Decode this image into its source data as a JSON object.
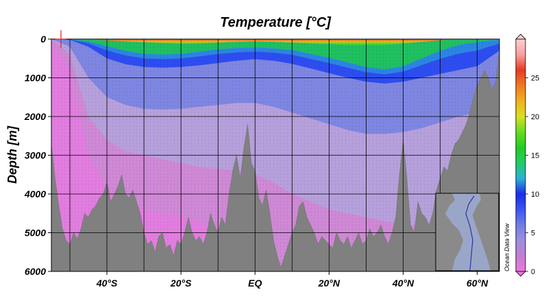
{
  "chart_data": {
    "type": "heatmap",
    "title": "Temperature [°C]",
    "ylabel": "Depth [m]",
    "xlabel": "",
    "x_ticks": [
      {
        "lat": -40,
        "label": "40°S"
      },
      {
        "lat": -20,
        "label": "20°S"
      },
      {
        "lat": 0,
        "label": "EQ"
      },
      {
        "lat": 20,
        "label": "20°N"
      },
      {
        "lat": 40,
        "label": "40°N"
      },
      {
        "lat": 60,
        "label": "60°N"
      }
    ],
    "x_range": [
      -55,
      66
    ],
    "y_ticks": [
      0,
      1000,
      2000,
      3000,
      4000,
      5000,
      6000
    ],
    "y_range": [
      0,
      6000
    ],
    "y_reversed": true,
    "grid": true,
    "colorbar": {
      "min": 0,
      "max": 30,
      "ticks": [
        0,
        5,
        10,
        15,
        20,
        25
      ],
      "colors": [
        "#ee77dd",
        "#c07fd2",
        "#9e8ee0",
        "#6e7fe6",
        "#3b55f0",
        "#1a2be8",
        "#2cb0d8",
        "#22cc66",
        "#22cc22",
        "#66dd22",
        "#d8e022",
        "#f0b020",
        "#f07a20",
        "#e83a24",
        "#f8a0a0",
        "#fdd0d0"
      ]
    },
    "isotherm_depths": {
      "lat": [
        -55,
        -50,
        -45,
        -40,
        -35,
        -30,
        -25,
        -20,
        -15,
        -10,
        -5,
        0,
        5,
        10,
        15,
        20,
        25,
        30,
        35,
        40,
        45,
        50,
        55,
        60,
        63,
        66
      ],
      "t20": [
        0,
        0,
        10,
        30,
        60,
        80,
        100,
        120,
        110,
        90,
        70,
        60,
        70,
        90,
        110,
        130,
        150,
        160,
        150,
        110,
        70,
        30,
        0,
        0,
        0,
        0
      ],
      "t10": [
        0,
        5,
        60,
        180,
        300,
        380,
        400,
        380,
        320,
        260,
        230,
        220,
        240,
        280,
        380,
        480,
        600,
        720,
        780,
        700,
        500,
        300,
        150,
        80,
        40,
        20
      ],
      "t5": [
        0,
        20,
        200,
        500,
        650,
        720,
        740,
        720,
        680,
        620,
        560,
        520,
        560,
        640,
        760,
        880,
        1000,
        1100,
        1150,
        1100,
        1000,
        900,
        800,
        700,
        500,
        300
      ],
      "t3": [
        0,
        200,
        1000,
        1500,
        1700,
        1800,
        1820,
        1800,
        1750,
        1700,
        1650,
        1650,
        1750,
        1900,
        2050,
        2200,
        2350,
        2450,
        2450,
        2400,
        2300,
        2150,
        2000,
        1900,
        1700,
        1500
      ],
      "t2": [
        0,
        400,
        2000,
        2600,
        2900,
        3000,
        3100,
        3200,
        3300,
        3350,
        3400,
        3500,
        3700,
        4000,
        4200,
        4400,
        4500,
        4600,
        4700,
        4800,
        4800,
        4700,
        4600,
        4400,
        4200,
        4000
      ],
      "t1": [
        50,
        800,
        3000,
        3800,
        4200,
        4400,
        4500,
        4550,
        4700,
        5000,
        5500,
        6000,
        6000,
        6000,
        6000,
        6000,
        6000,
        6000,
        6000,
        6000,
        6000,
        6000,
        6000,
        6000,
        6000,
        6000
      ]
    },
    "bathymetry": {
      "lat": [
        -55,
        -54,
        -53,
        -52,
        -51,
        -50,
        -49,
        -48,
        -47,
        -46,
        -45,
        -44,
        -43,
        -42,
        -41,
        -40,
        -39,
        -38,
        -37,
        -36,
        -35,
        -34,
        -33,
        -32,
        -31,
        -30,
        -29,
        -28,
        -27,
        -26,
        -25,
        -24,
        -23,
        -22,
        -21,
        -20,
        -19,
        -18,
        -17,
        -16,
        -15,
        -14,
        -13,
        -12,
        -11,
        -10,
        -9,
        -8,
        -7,
        -6,
        -5,
        -4,
        -3,
        -2,
        -1,
        0,
        1,
        2,
        3,
        4,
        5,
        6,
        7,
        8,
        9,
        10,
        11,
        12,
        13,
        14,
        15,
        16,
        17,
        18,
        19,
        20,
        21,
        22,
        23,
        24,
        25,
        26,
        27,
        28,
        29,
        30,
        31,
        32,
        33,
        34,
        35,
        36,
        37,
        38,
        39,
        40,
        41,
        42,
        43,
        44,
        45,
        46,
        47,
        48,
        49,
        50,
        51,
        52,
        53,
        54,
        55,
        56,
        57,
        58,
        59,
        60,
        61,
        62,
        63,
        64,
        65,
        66
      ],
      "depth": [
        2700,
        3600,
        4300,
        4900,
        5200,
        5300,
        5000,
        5150,
        4900,
        4500,
        4600,
        4400,
        4300,
        4100,
        4000,
        3700,
        4200,
        4000,
        3800,
        3500,
        4000,
        4100,
        3900,
        4200,
        4500,
        5000,
        5300,
        5200,
        5500,
        5100,
        5000,
        5400,
        5300,
        5600,
        5200,
        5300,
        5000,
        4600,
        5000,
        5200,
        5100,
        5300,
        5000,
        4500,
        4800,
        5000,
        4600,
        4800,
        4000,
        3400,
        3000,
        3600,
        2800,
        2200,
        3200,
        3400,
        4100,
        4300,
        3900,
        4500,
        5200,
        5600,
        5900,
        5600,
        5300,
        5000,
        4800,
        4300,
        4200,
        4600,
        4800,
        5000,
        5300,
        5100,
        5200,
        5300,
        5400,
        5000,
        5200,
        5300,
        5100,
        5400,
        5200,
        5000,
        5300,
        5200,
        4900,
        5100,
        5000,
        4800,
        5100,
        5300,
        5000,
        4600,
        3500,
        2600,
        3600,
        4800,
        5000,
        4200,
        4500,
        4600,
        4800,
        4500,
        3900,
        3600,
        3300,
        3400,
        3000,
        2700,
        2600,
        2400,
        2200,
        1900,
        1500,
        1200,
        1000,
        800,
        1000,
        1300,
        1100,
        300
      ]
    }
  },
  "watermark": "Ocean Data View"
}
